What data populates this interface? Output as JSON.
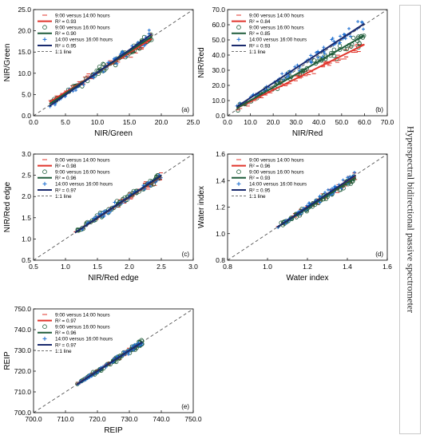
{
  "side_label": "Hyperspectral bidirectional passive spectrometer",
  "legend_common": {
    "series_a": "9:00 versus 14:00 hours",
    "series_b": "9:00 versus 16:00 hours",
    "series_c": "14:00 versus 16:00 hours",
    "one_to_one": "1:1 line"
  },
  "colors": {
    "series_a": "#e0352b",
    "series_b": "#1f5c3a",
    "series_c": "#1e6fd0",
    "fit_c": "#1a2a6e",
    "one_to_one": "#444444"
  },
  "chart_data": [
    {
      "type": "scatter",
      "panel": "(a)",
      "xlabel": "NIR/Green",
      "ylabel": "NIR/Green",
      "xlim": [
        0,
        25
      ],
      "ylim": [
        0,
        25
      ],
      "xticks": [
        "0.0",
        "5.0",
        "10.0",
        "15.0",
        "20.0",
        "25.0"
      ],
      "yticks": [
        "0.0",
        "5.0",
        "10.0",
        "15.0",
        "20.0",
        "25.0"
      ],
      "r2": [
        "R² = 0.93",
        "R² = 0.90",
        "R² = 0.95"
      ],
      "data_range": [
        2.5,
        18.5
      ],
      "fits": [
        {
          "slope": 0.93,
          "intercept": 0.9
        },
        {
          "slope": 0.99,
          "intercept": 0.3
        },
        {
          "slope": 1.06,
          "intercept": -0.4
        }
      ]
    },
    {
      "type": "scatter",
      "panel": "(b)",
      "xlabel": "NIR/Red",
      "ylabel": "NIR/Red",
      "xlim": [
        0,
        70
      ],
      "ylim": [
        0,
        70
      ],
      "xticks": [
        "0.0",
        "10.0",
        "20.0",
        "30.0",
        "40.0",
        "50.0",
        "60.0",
        "70.0"
      ],
      "yticks": [
        "0.0",
        "10.0",
        "20.0",
        "30.0",
        "40.0",
        "50.0",
        "60.0",
        "70.0"
      ],
      "r2": [
        "R² = 0.84",
        "R² = 0.85",
        "R² = 0.93"
      ],
      "data_range": [
        4,
        60
      ],
      "fits": [
        {
          "slope": 0.75,
          "intercept": 2.0
        },
        {
          "slope": 0.86,
          "intercept": 1.5
        },
        {
          "slope": 0.98,
          "intercept": 2.0
        }
      ]
    },
    {
      "type": "scatter",
      "panel": "(c)",
      "xlabel": "NIR/Red edge",
      "ylabel": "NIR/Red edge",
      "xlim": [
        0.5,
        3.0
      ],
      "ylim": [
        0.5,
        3.0
      ],
      "xticks": [
        "0.5",
        "1.0",
        "1.5",
        "2.0",
        "2.5",
        "3.0"
      ],
      "yticks": [
        "0.5",
        "1.0",
        "1.5",
        "2.0",
        "2.5",
        "3.0"
      ],
      "r2": [
        "R² = 0.98",
        "R² = 0.96",
        "R² = 0.97"
      ],
      "data_range": [
        1.15,
        2.5
      ],
      "fits": [
        {
          "slope": 0.98,
          "intercept": 0.02
        },
        {
          "slope": 0.99,
          "intercept": 0.01
        },
        {
          "slope": 1.0,
          "intercept": 0.0
        }
      ]
    },
    {
      "type": "scatter",
      "panel": "(d)",
      "xlabel": "Water index",
      "ylabel": "Water index",
      "xlim": [
        0.8,
        1.6
      ],
      "ylim": [
        0.8,
        1.6
      ],
      "xticks": [
        "0.8",
        "1.0",
        "1.2",
        "1.4",
        "1.6"
      ],
      "yticks": [
        "0.8",
        "1.0",
        "1.2",
        "1.4",
        "1.6"
      ],
      "r2": [
        "R² = 0.96",
        "R² = 0.93",
        "R² = 0.95"
      ],
      "data_range": [
        1.05,
        1.44
      ],
      "fits": [
        {
          "slope": 0.98,
          "intercept": 0.02
        },
        {
          "slope": 0.96,
          "intercept": 0.04
        },
        {
          "slope": 1.0,
          "intercept": 0.0
        }
      ]
    },
    {
      "type": "scatter",
      "panel": "(e)",
      "xlabel": "REIP",
      "ylabel": "REIP",
      "xlim": [
        700,
        750
      ],
      "ylim": [
        700,
        750
      ],
      "xticks": [
        "700.0",
        "710.0",
        "720.0",
        "730.0",
        "740.0",
        "750.0"
      ],
      "yticks": [
        "700.0",
        "710.0",
        "720.0",
        "730.0",
        "740.0",
        "750.0"
      ],
      "r2": [
        "R² = 0.97",
        "R² = 0.96",
        "R² = 0.97"
      ],
      "data_range": [
        713.5,
        734
      ],
      "fits": [
        {
          "slope": 0.98,
          "intercept": 14.5
        },
        {
          "slope": 0.99,
          "intercept": 7.2
        },
        {
          "slope": 1.0,
          "intercept": 0.0
        }
      ]
    }
  ]
}
